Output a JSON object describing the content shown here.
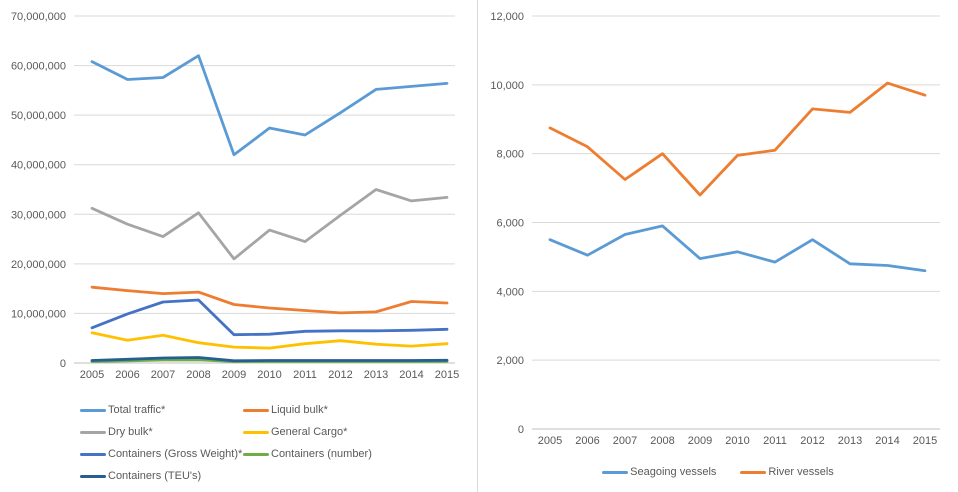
{
  "page": {
    "background": "#ffffff",
    "divider_color": "#d9d9d9",
    "gridline_color": "#d9d9d9",
    "axis_line_color": "#bfbfbf",
    "tick_label_color": "#595959"
  },
  "chart_data": [
    {
      "type": "line",
      "title": "",
      "xlabel": "",
      "ylabel": "",
      "grid": true,
      "legend_position": "bottom-left-two-columns",
      "x": [
        "2005",
        "2006",
        "2007",
        "2008",
        "2009",
        "2010",
        "2011",
        "2012",
        "2013",
        "2014",
        "2015"
      ],
      "ylim": [
        0,
        70000000
      ],
      "ytick_step": 10000000,
      "ytick_labels": [
        "0",
        "10,000,000",
        "20,000,000",
        "30,000,000",
        "40,000,000",
        "50,000,000",
        "60,000,000",
        "70,000,000"
      ],
      "series": [
        {
          "name": "Total traffic*",
          "color": "#5B9BD5",
          "values": [
            60800000,
            57200000,
            57600000,
            62000000,
            42000000,
            47400000,
            46000000,
            50500000,
            55200000,
            55800000,
            56400000
          ]
        },
        {
          "name": "Liquid bulk*",
          "color": "#ED7D31",
          "values": [
            15300000,
            14600000,
            14000000,
            14300000,
            11800000,
            11100000,
            10600000,
            10100000,
            10300000,
            12400000,
            12100000
          ]
        },
        {
          "name": "Dry bulk*",
          "color": "#A5A5A5",
          "values": [
            31200000,
            28000000,
            25500000,
            30300000,
            21000000,
            26800000,
            24500000,
            29800000,
            35000000,
            32700000,
            33400000
          ]
        },
        {
          "name": "General Cargo*",
          "color": "#FFC000",
          "values": [
            6100000,
            4600000,
            5600000,
            4100000,
            3200000,
            3000000,
            3900000,
            4500000,
            3800000,
            3400000,
            3900000
          ]
        },
        {
          "name": "Containers (Gross Weight)*",
          "color": "#4472C4",
          "values": [
            7100000,
            9900000,
            12300000,
            12700000,
            5700000,
            5800000,
            6400000,
            6500000,
            6500000,
            6600000,
            6800000
          ]
        },
        {
          "name": "Containers (number)",
          "color": "#70AD47",
          "values": [
            300000,
            450000,
            600000,
            650000,
            300000,
            300000,
            300000,
            300000,
            300000,
            300000,
            350000
          ]
        },
        {
          "name": "Containers (TEU's)",
          "color": "#255E91",
          "values": [
            500000,
            750000,
            1000000,
            1100000,
            450000,
            500000,
            500000,
            500000,
            500000,
            500000,
            550000
          ]
        }
      ]
    },
    {
      "type": "line",
      "title": "",
      "xlabel": "",
      "ylabel": "",
      "grid": true,
      "legend_position": "bottom-center",
      "x": [
        "2005",
        "2006",
        "2007",
        "2008",
        "2009",
        "2010",
        "2011",
        "2012",
        "2013",
        "2014",
        "2015"
      ],
      "ylim": [
        0,
        12000
      ],
      "ytick_step": 2000,
      "ytick_labels": [
        "0",
        "2,000",
        "4,000",
        "6,000",
        "8,000",
        "10,000",
        "12,000"
      ],
      "series": [
        {
          "name": "Seagoing vessels",
          "color": "#5B9BD5",
          "values": [
            5500,
            5050,
            5650,
            5900,
            4950,
            5150,
            4850,
            5500,
            4800,
            4750,
            4600
          ]
        },
        {
          "name": "River vessels",
          "color": "#ED7D31",
          "values": [
            8750,
            8200,
            7250,
            8000,
            6800,
            7950,
            8100,
            9300,
            9200,
            10050,
            9700
          ]
        }
      ]
    }
  ]
}
